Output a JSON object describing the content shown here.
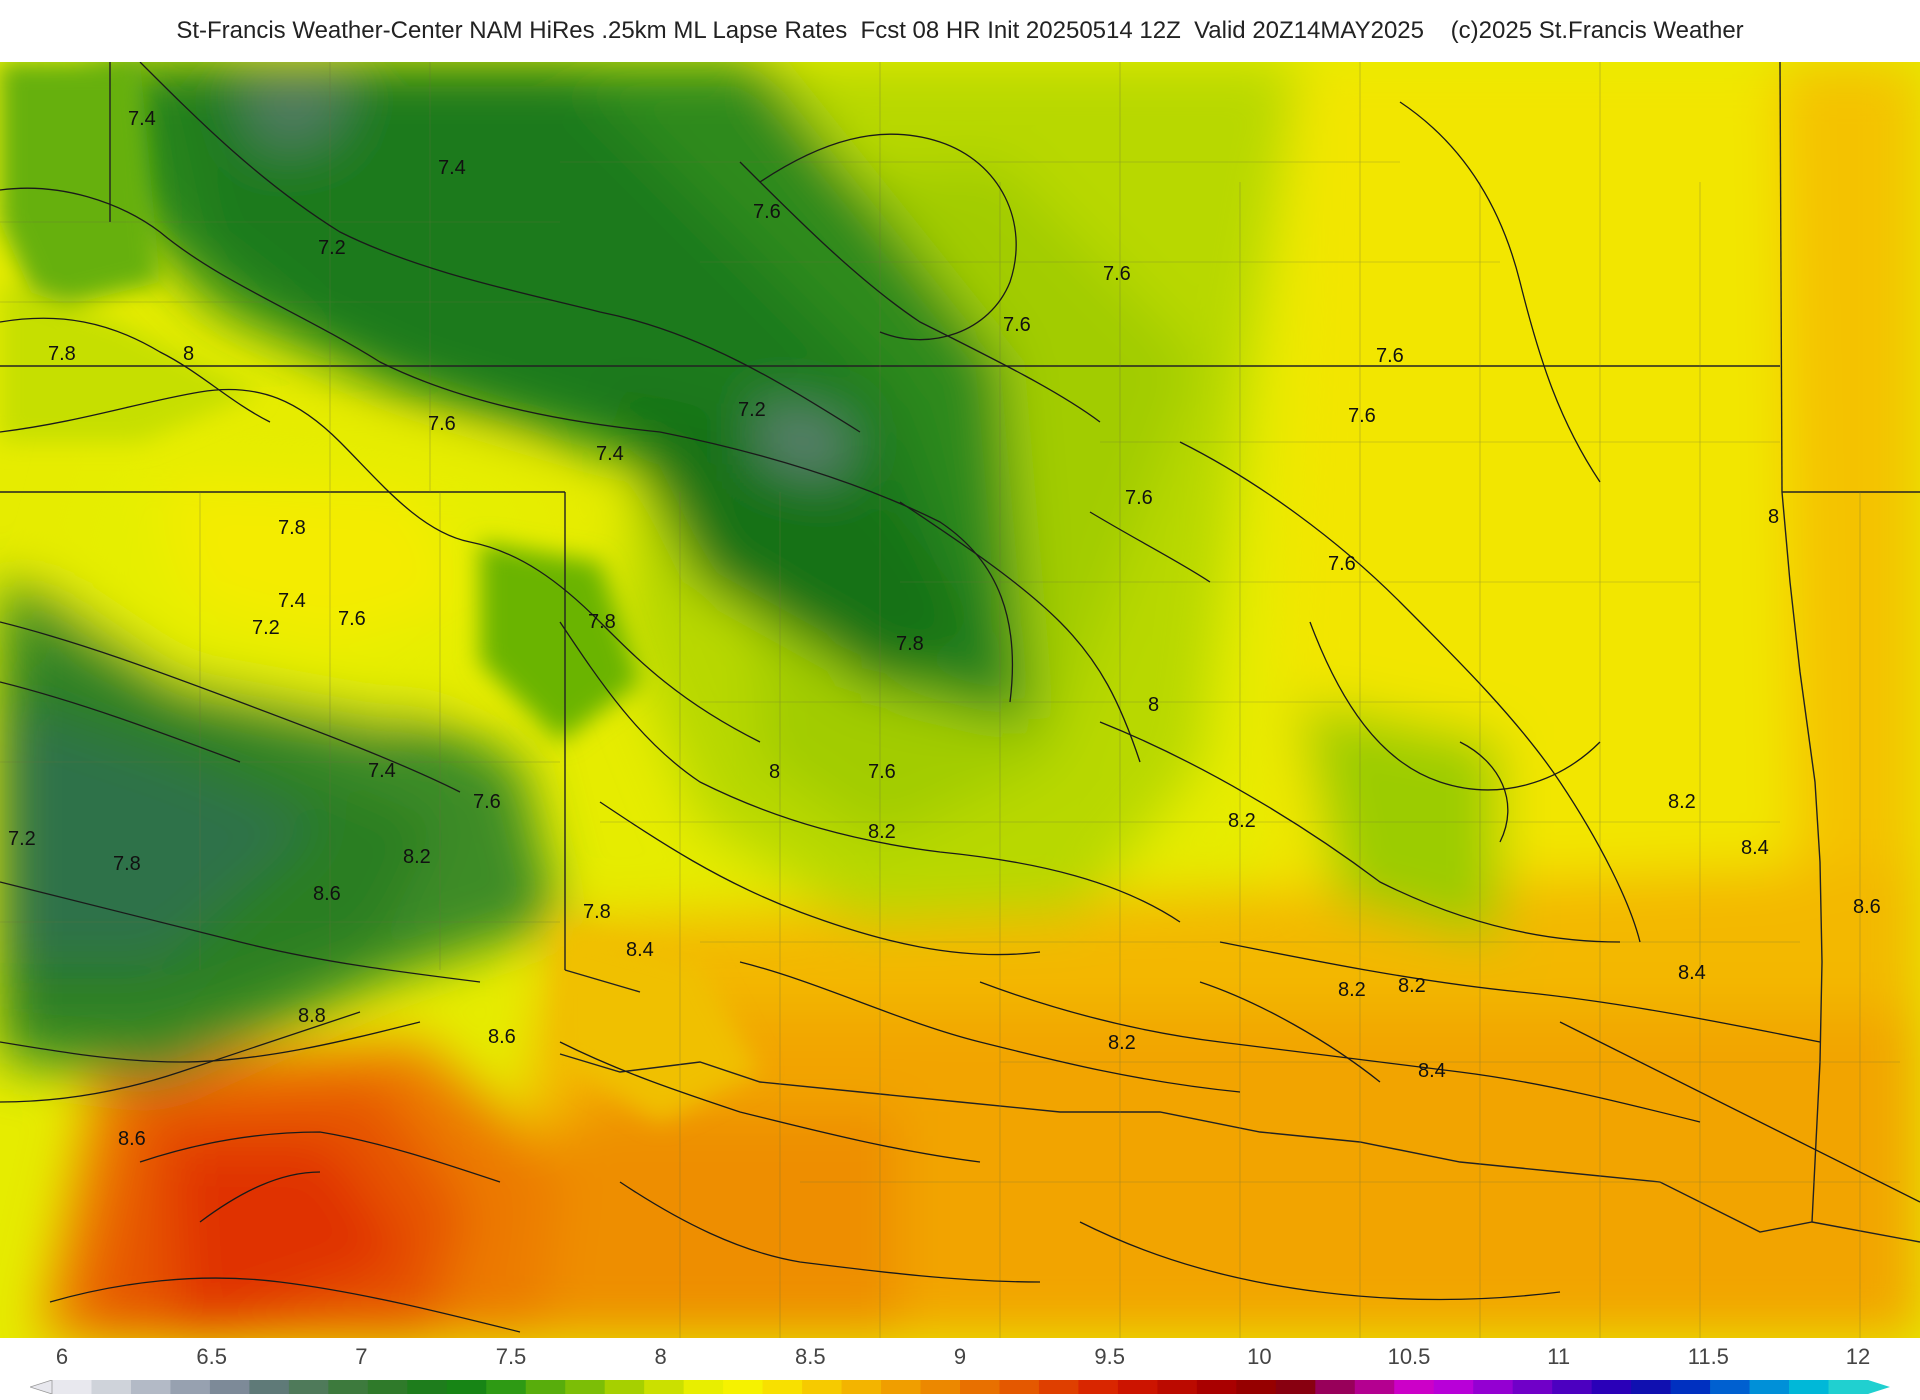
{
  "header": {
    "title": "St-Francis Weather-Center NAM HiRes .25km ML Lapse Rates  Fcst 08 HR Init 20250514 12Z  Valid 20Z14MAY2025    (c)2025 St.Francis Weather"
  },
  "map": {
    "field": "ML Lapse Rates",
    "contour_labels": [
      "7.4",
      "7.4",
      "7.2",
      "7.6",
      "7.6",
      "7.6",
      "7.6",
      "7.8",
      "8",
      "7.6",
      "7.2",
      "7.4",
      "7.8",
      "7.6",
      "7.4",
      "7.6",
      "7.2",
      "7.6",
      "7.6",
      "7.8",
      "8",
      "7.8",
      "8",
      "7.4",
      "7.6",
      "7.6",
      "7.8",
      "8",
      "8.2",
      "8.2",
      "8.4",
      "8.6",
      "8.2",
      "8.2",
      "8.4",
      "8.2",
      "8.6",
      "8.4",
      "8.8",
      "8.6",
      "8.2",
      "8.4",
      "8.6",
      "7.2",
      "7.8",
      "8.2"
    ]
  },
  "colorbar": {
    "ticks": [
      "6",
      "6.5",
      "7",
      "7.5",
      "8",
      "8.5",
      "9",
      "9.5",
      "10",
      "10.5",
      "11",
      "11.5",
      "12"
    ],
    "colors": [
      "#e8e8ee",
      "#cfd3da",
      "#b3bac6",
      "#97a1b0",
      "#7d8a98",
      "#5f7a78",
      "#4f7a5a",
      "#3d7a3d",
      "#2f7a2a",
      "#1e7d1c",
      "#178515",
      "#2e9a14",
      "#58ad0c",
      "#7cbe06",
      "#a6d000",
      "#cbe000",
      "#e8ee00",
      "#f6f200",
      "#f8e000",
      "#f6ca00",
      "#f3b400",
      "#f09e00",
      "#ec8800",
      "#e87000",
      "#e45800",
      "#df3f00",
      "#d92600",
      "#cc1400",
      "#bb0a00",
      "#a90000",
      "#960000",
      "#880010",
      "#98005a",
      "#b40090",
      "#cc00c8",
      "#b800d8",
      "#9400d2",
      "#7000c8",
      "#4c00c0",
      "#2a00b8",
      "#1010b0",
      "#0030c0",
      "#0060d0",
      "#0090d8",
      "#00b8d8",
      "#20d0d0"
    ]
  }
}
